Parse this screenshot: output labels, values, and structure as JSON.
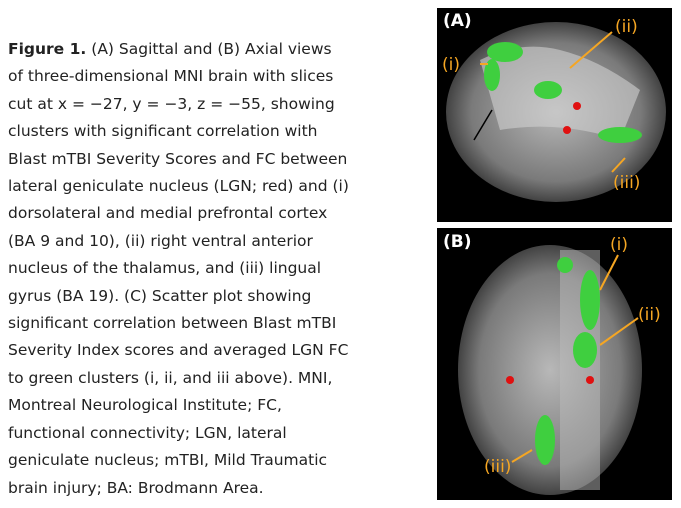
{
  "caption": {
    "label": "Figure 1.",
    "lines": [
      "(A) Sagittal and (B) Axial views",
      "of three-dimensional MNI brain with slices",
      "cut at x = −27, y = −3, z = −55, showing",
      "clusters with significant correlation with",
      "Blast mTBI Severity Scores and FC between",
      "lateral geniculate nucleus (LGN; red) and (i)",
      "dorsolateral and medial prefrontal cortex",
      "(BA 9 and 10), (ii) right ventral anterior",
      "nucleus of the thalamus, and (iii) lingual",
      "gyrus (BA 19). (C) Scatter plot showing",
      "significant correlation between Blast mTBI",
      "Severity Index scores and averaged LGN FC",
      "to green clusters (i, ii, and iii above). MNI,",
      "Montreal Neurological Institute; FC,",
      "functional connectivity; LGN, lateral",
      "geniculate nucleus; mTBI, Mild Traumatic",
      "brain injury; BA: Brodmann Area."
    ]
  },
  "panels": [
    {
      "label": "(A)",
      "annotations": [
        "(i)",
        "(ii)",
        "(iii)"
      ]
    },
    {
      "label": "(B)",
      "annotations": [
        "(i)",
        "(ii)",
        "(iii)"
      ]
    }
  ]
}
